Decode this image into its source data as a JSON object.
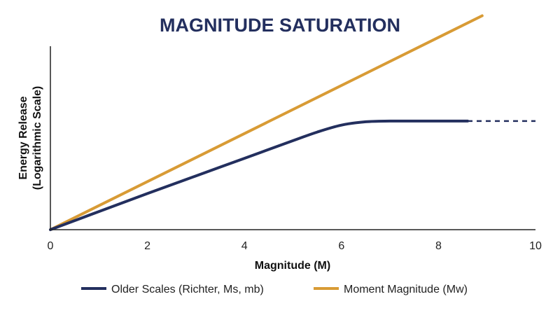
{
  "chart_data": {
    "type": "line",
    "title": "MAGNITUDE SATURATION",
    "xlabel": "Magnitude (M)",
    "ylabel_line1": "Energy Release",
    "ylabel_line2": "(Logarithmic Scale)",
    "xlim": [
      0,
      10
    ],
    "ylim": [
      0,
      10
    ],
    "xticks": [
      "0",
      "2",
      "4",
      "6",
      "8",
      "10"
    ],
    "grid": false,
    "legend_position": "bottom",
    "series": [
      {
        "name": "Older Scales (Richter, Ms, mb)",
        "color": "#232f5e",
        "x": [
          0,
          1,
          2,
          3,
          4,
          5,
          5.5,
          6,
          6.5,
          7,
          8,
          8.6
        ],
        "y": [
          0,
          0.99,
          1.97,
          2.93,
          3.89,
          4.85,
          5.32,
          5.7,
          5.88,
          5.92,
          5.92,
          5.92
        ],
        "extension": {
          "x": [
            8.6,
            10
          ],
          "y": [
            5.92,
            5.92
          ],
          "style": "dashed"
        }
      },
      {
        "name": "Moment Magnitude (Mw)",
        "color": "#d89b35",
        "x": [
          0,
          8.9
        ],
        "y": [
          0,
          11.66
        ]
      }
    ]
  }
}
